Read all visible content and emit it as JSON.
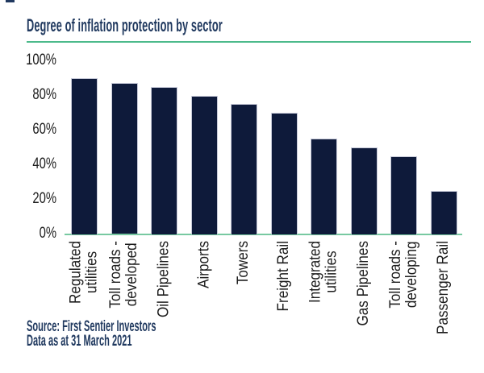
{
  "chart_data": {
    "type": "bar",
    "title": "Degree of inflation protection by sector",
    "categories": [
      "Regulated\nutilities",
      "Toll roads -\ndeveloped",
      "Oil Pipelines",
      "Airports",
      "Towers",
      "Freight Rail",
      "Integrated\nutilities",
      "Gas Pipelines",
      "Toll roads -\ndeveloping",
      "Passenger Rail"
    ],
    "values": [
      90,
      87,
      85,
      80,
      75,
      70,
      55,
      50,
      45,
      25
    ],
    "unit": "%",
    "xlabel": "",
    "ylabel": "",
    "ylim": [
      0,
      100
    ],
    "yticks": [
      "100%",
      "80%",
      "60%",
      "40%",
      "20%",
      "0%"
    ],
    "grid": false,
    "legend": false,
    "source": "Source: First Sentier Investors",
    "date_note": "Data as at 31 March 2021",
    "colors": {
      "bar_fill": "#0e1a3a",
      "bar_border": "#c6c9d8",
      "title_navy": "#20395f",
      "accent_green": "#4cba8b",
      "baseline_green": "#77c9a1",
      "label_color": "#1c1c1c"
    }
  }
}
